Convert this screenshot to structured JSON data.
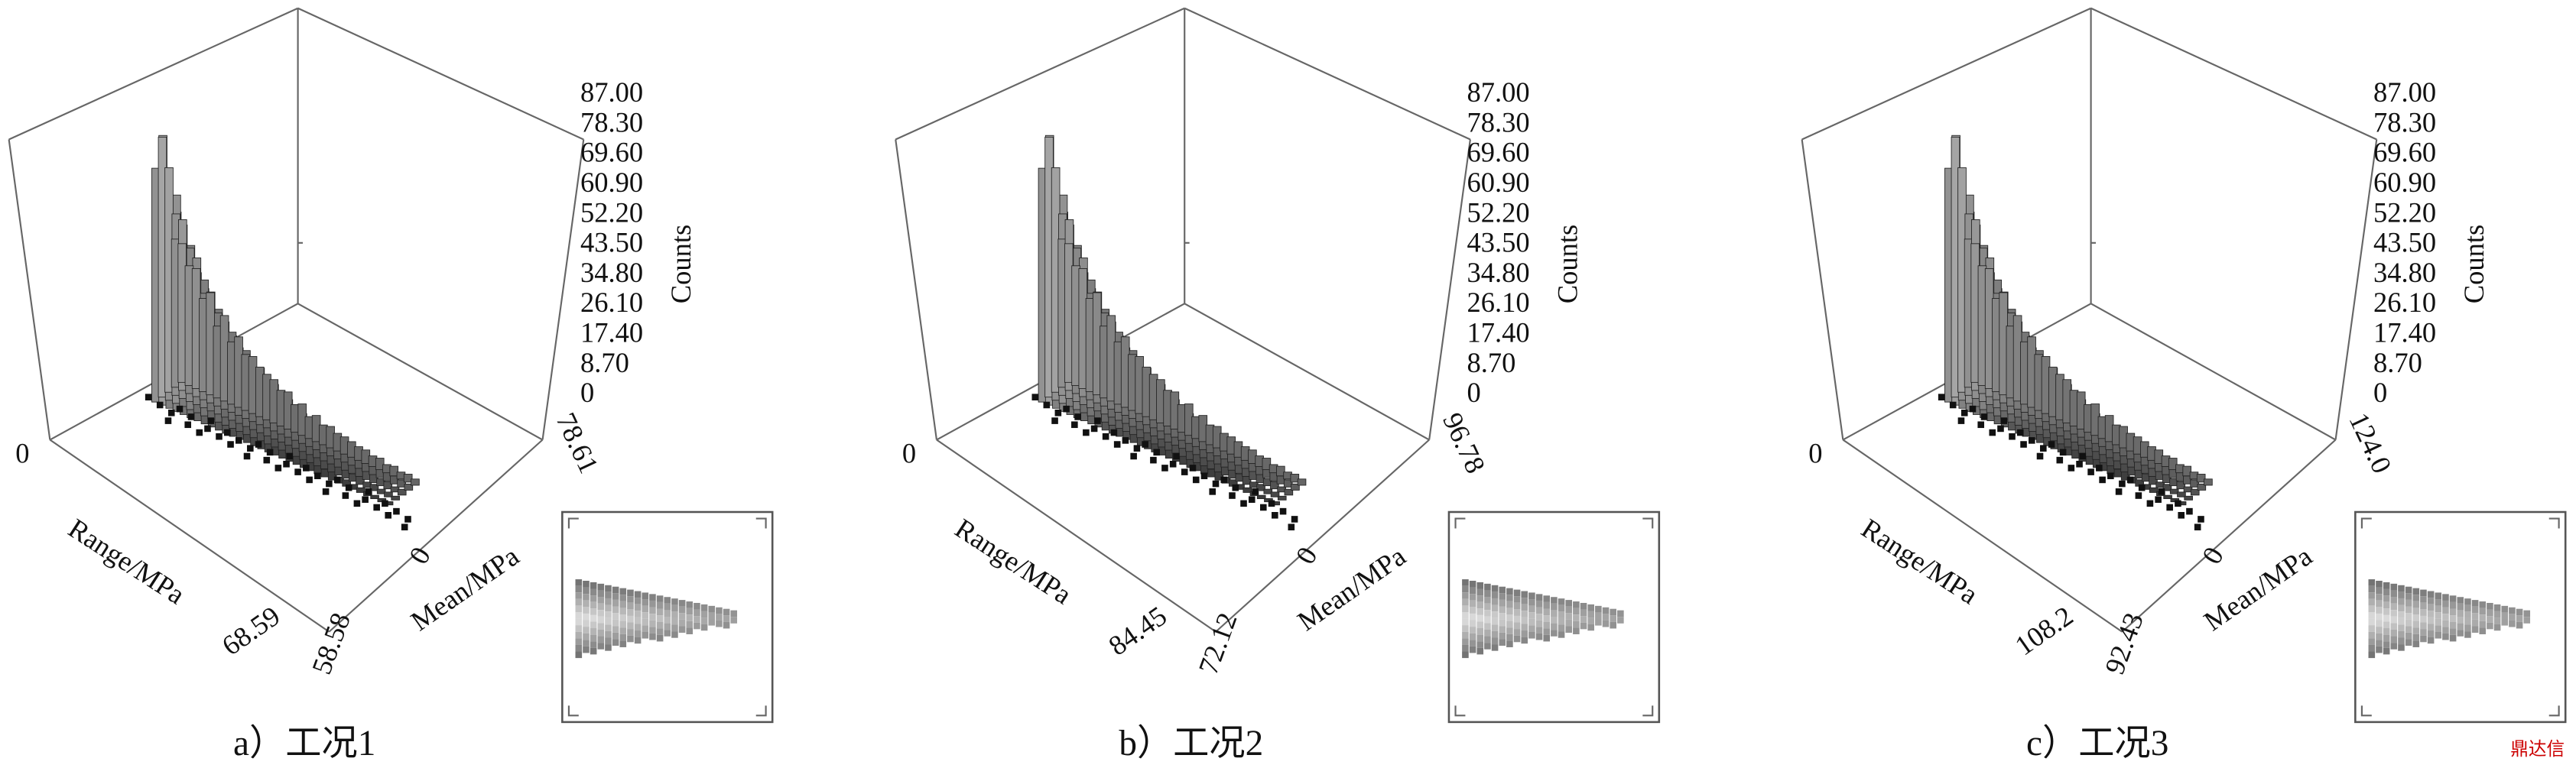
{
  "panels": [
    {
      "counts_ticks": [
        "87.00",
        "78.30",
        "69.60",
        "60.90",
        "52.20",
        "43.50",
        "34.80",
        "26.10",
        "17.40",
        "8.70",
        "0"
      ],
      "counts_label": "Counts",
      "range_start": "0",
      "range_label": "Range/MPa",
      "range_end": "68.59",
      "mean_start": "0",
      "mean_label": "Mean/MPa",
      "mean_end": "58.58",
      "corner_label": "78.61",
      "caption": "a）工况1"
    },
    {
      "counts_ticks": [
        "87.00",
        "78.30",
        "69.60",
        "60.90",
        "52.20",
        "43.50",
        "34.80",
        "26.10",
        "17.40",
        "8.70",
        "0"
      ],
      "counts_label": "Counts",
      "range_start": "0",
      "range_label": "Range/MPa",
      "range_end": "84.45",
      "mean_start": "0",
      "mean_label": "Mean/MPa",
      "mean_end": "72.12",
      "corner_label": "96.78",
      "caption": "b）工况2"
    },
    {
      "counts_ticks": [
        "87.00",
        "78.30",
        "69.60",
        "60.90",
        "52.20",
        "43.50",
        "34.80",
        "26.10",
        "17.40",
        "8.70",
        "0"
      ],
      "counts_label": "Counts",
      "range_start": "0",
      "range_label": "Range/MPa",
      "range_end": "108.2",
      "mean_start": "0",
      "mean_label": "Mean/MPa",
      "mean_end": "92.43",
      "corner_label": "124.0",
      "caption": "c）工况3"
    }
  ],
  "watermark": "鼎达信"
}
